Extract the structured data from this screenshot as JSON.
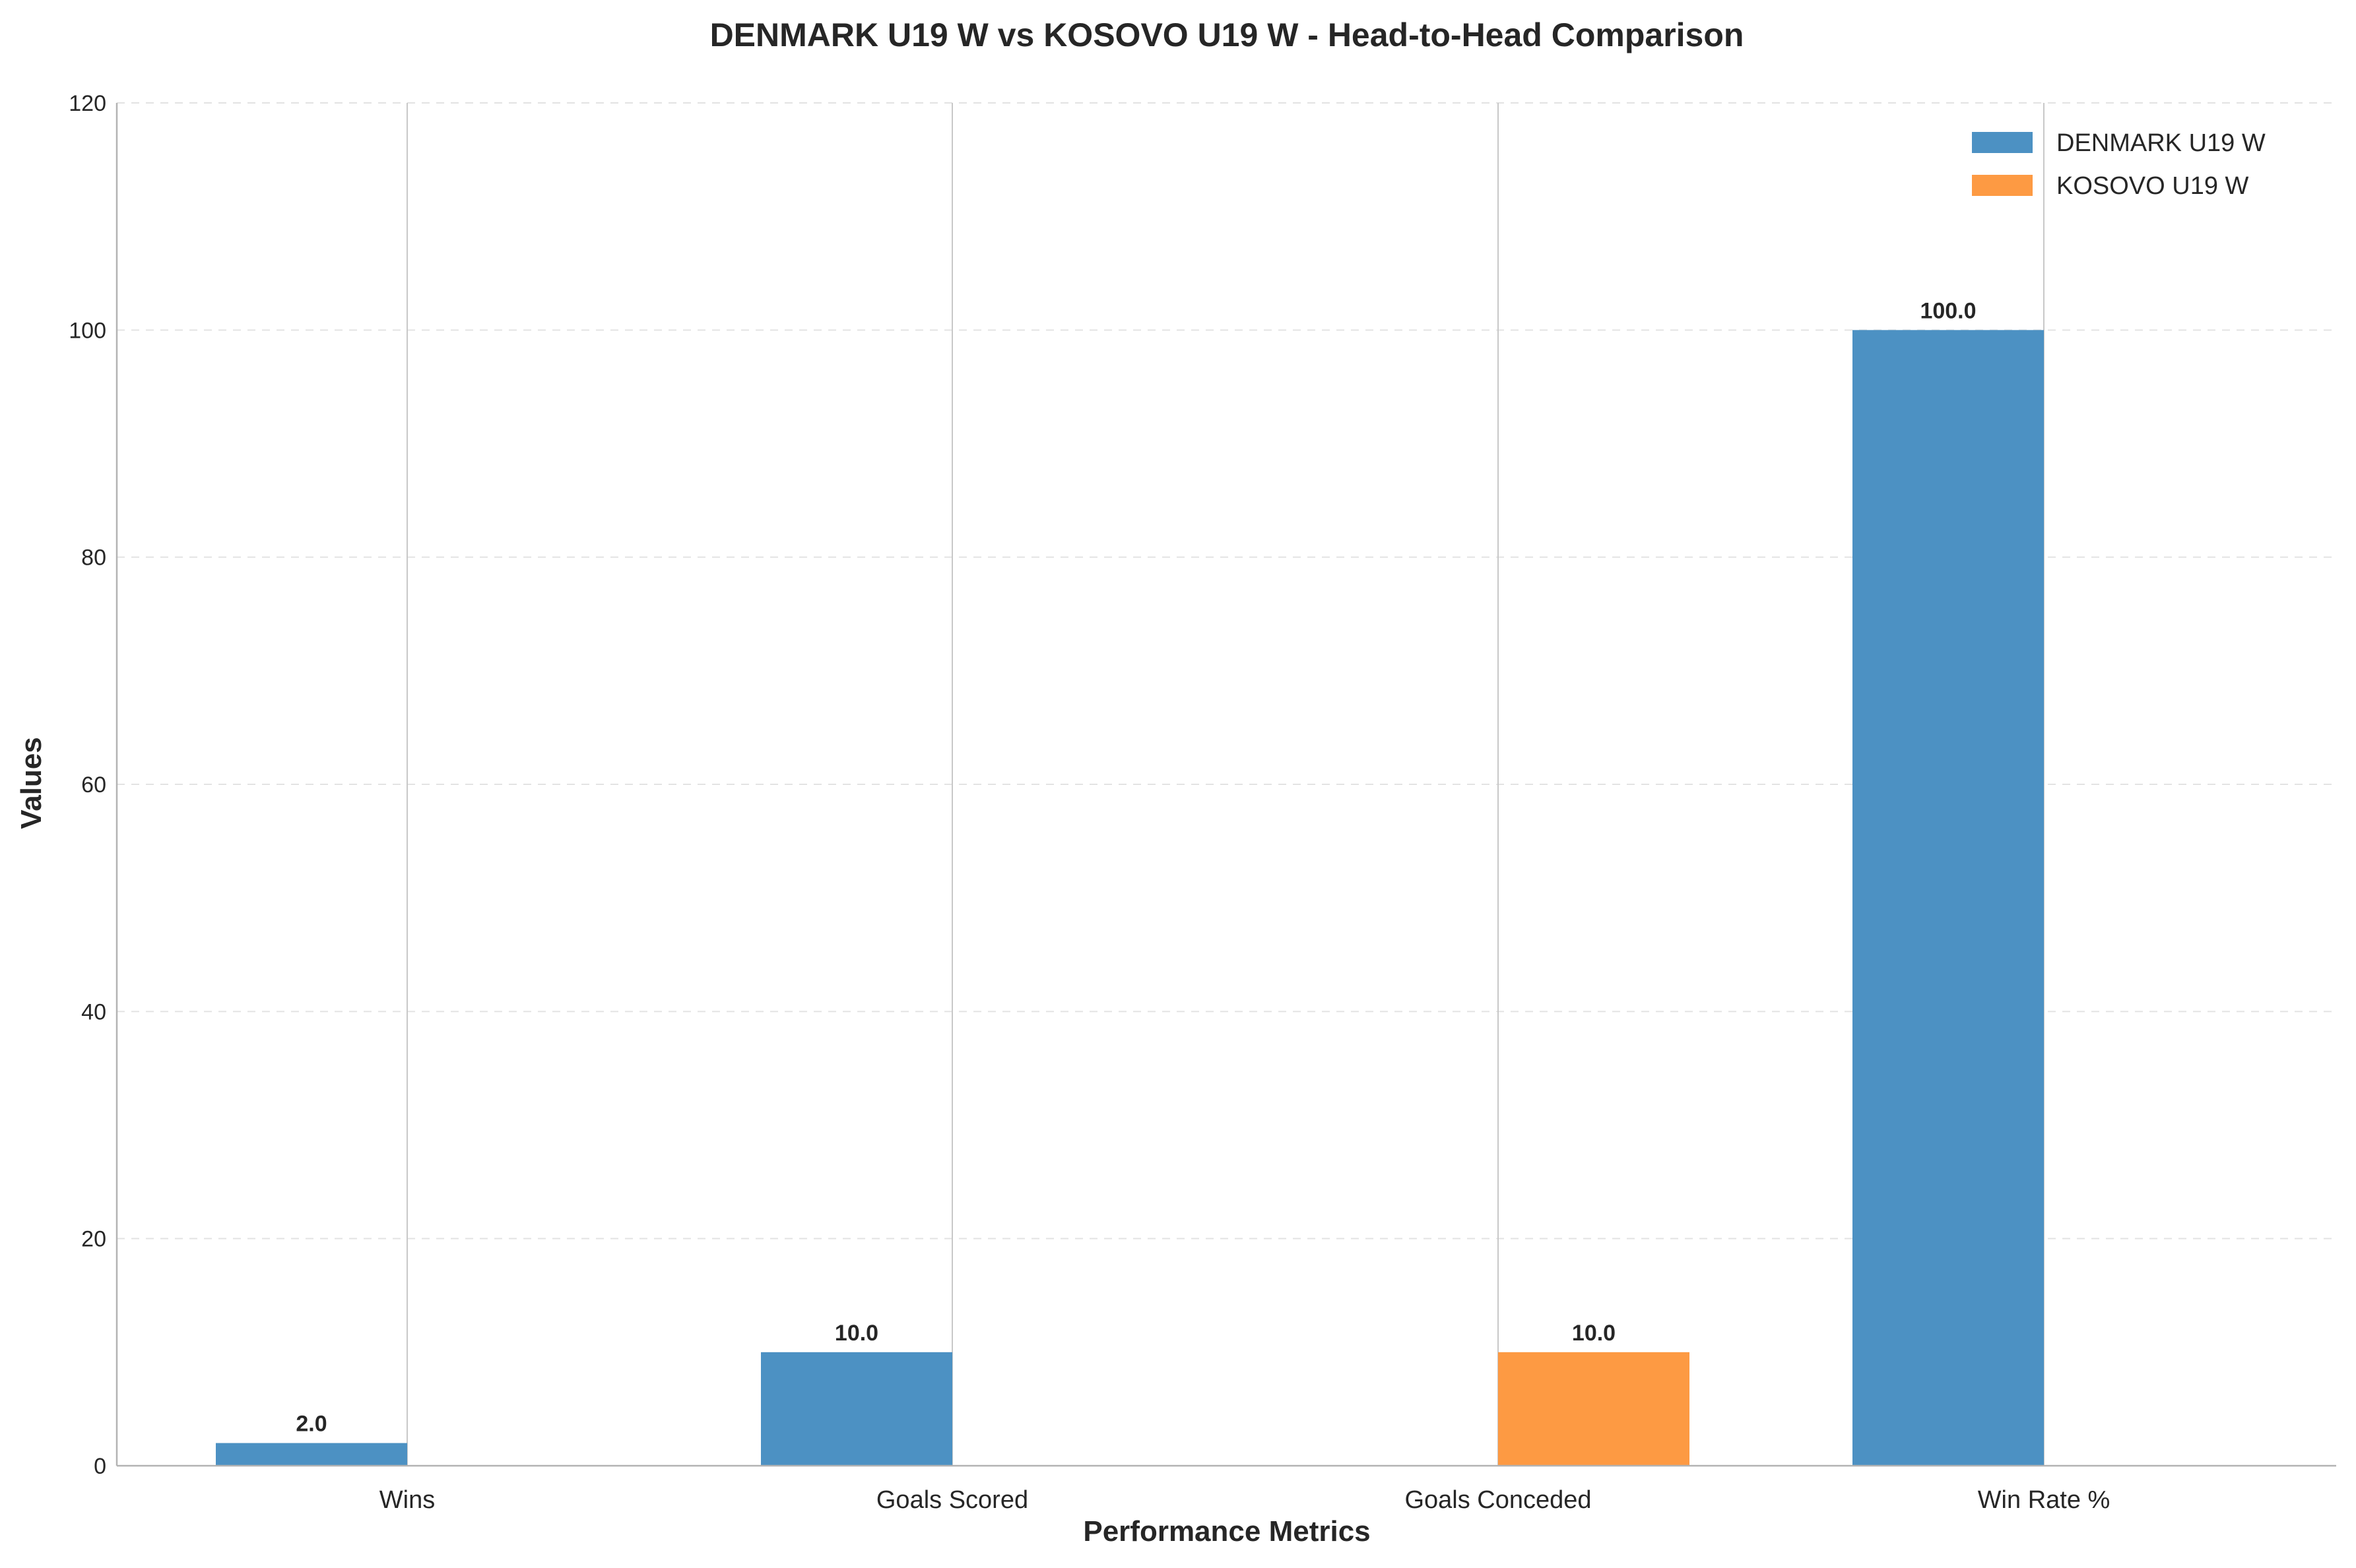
{
  "chart_data": {
    "type": "bar",
    "title": "DENMARK U19 W vs KOSOVO U19 W - Head-to-Head Comparison",
    "xlabel": "Performance Metrics",
    "ylabel": "Values",
    "categories": [
      "Wins",
      "Goals Scored",
      "Goals Conceded",
      "Win Rate %"
    ],
    "series": [
      {
        "name": "DENMARK U19 W",
        "color": "#4c91c3",
        "values": [
          2.0,
          10.0,
          0,
          100.0
        ]
      },
      {
        "name": "KOSOVO U19 W",
        "color": "#fd9a43",
        "values": [
          0,
          0,
          10.0,
          0
        ]
      }
    ],
    "data_labels": [
      [
        "2.0",
        "10.0",
        "",
        "100.0"
      ],
      [
        "",
        "",
        "10.0",
        ""
      ]
    ],
    "yticks": [
      0,
      20,
      40,
      60,
      80,
      100,
      120
    ],
    "ylim": [
      0,
      120
    ],
    "grid": "horizontal dashed",
    "legend_position": "top-right"
  }
}
